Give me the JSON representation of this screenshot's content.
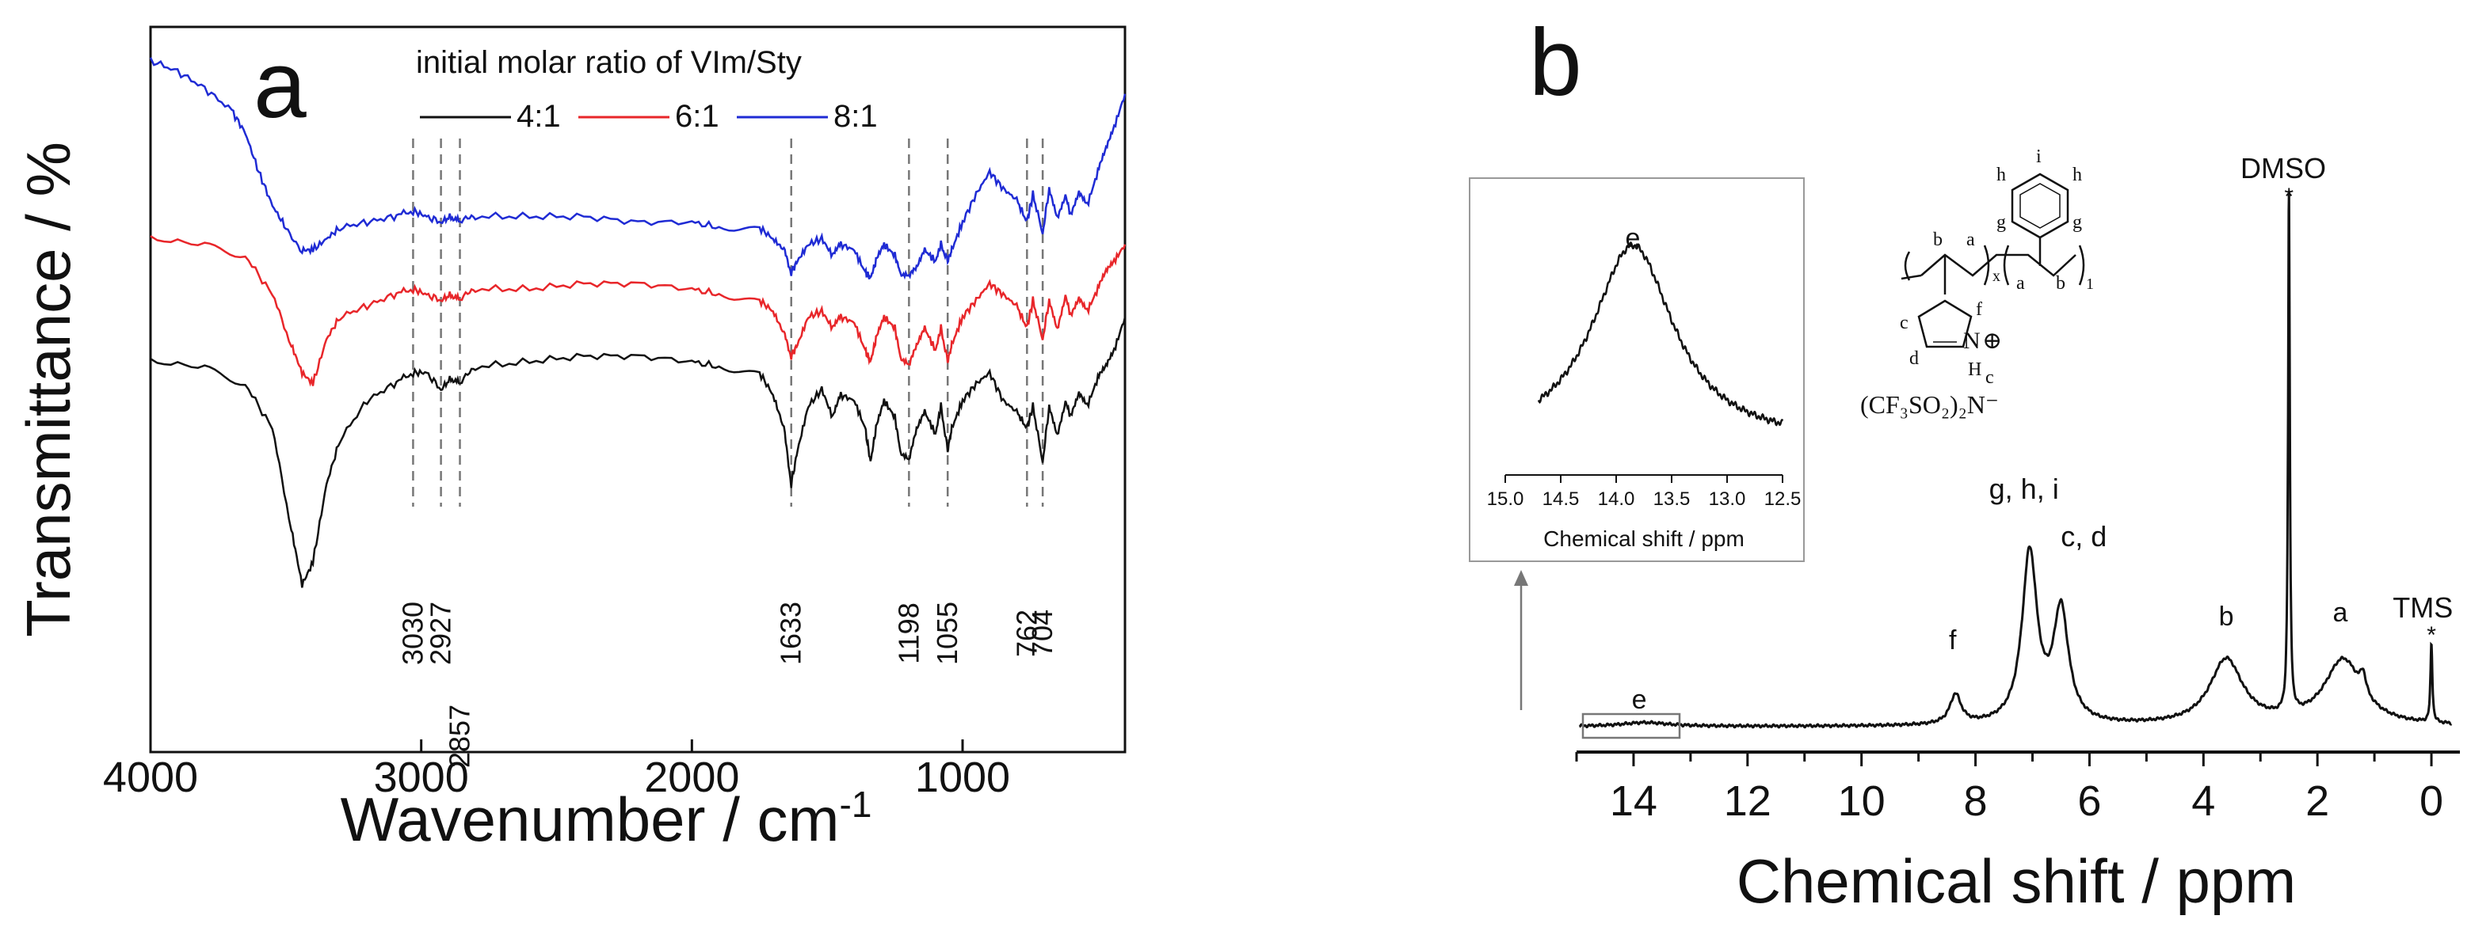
{
  "colors": {
    "black": "#111111",
    "red": "#e8262a",
    "blue": "#1f2bd4",
    "grey": "#777777"
  },
  "chart_data": [
    {
      "type": "line",
      "panel_label": "a",
      "xlabel": "Wavenumber / cm",
      "xlabel_sup": "-1",
      "ylabel": "Transmittance / %",
      "xlim": [
        4000,
        400
      ],
      "x_ticks": [
        4000,
        3000,
        2000,
        1000
      ],
      "legend_title": "initial molar ratio of VIm/Sty",
      "series": [
        {
          "name": "4:1",
          "color": "#111111",
          "points": [
            [
              4000,
              70
            ],
            [
              3800,
              69
            ],
            [
              3650,
              66
            ],
            [
              3550,
              58
            ],
            [
              3480,
              40
            ],
            [
              3440,
              30
            ],
            [
              3400,
              34
            ],
            [
              3350,
              48
            ],
            [
              3300,
              56
            ],
            [
              3200,
              63
            ],
            [
              3100,
              66
            ],
            [
              3030,
              68
            ],
            [
              2980,
              68
            ],
            [
              2927,
              65
            ],
            [
              2890,
              67
            ],
            [
              2857,
              66
            ],
            [
              2800,
              69
            ],
            [
              2600,
              70
            ],
            [
              2400,
              71
            ],
            [
              2200,
              71
            ],
            [
              2000,
              70
            ],
            [
              1900,
              69
            ],
            [
              1750,
              68
            ],
            [
              1700,
              64
            ],
            [
              1660,
              58
            ],
            [
              1633,
              48
            ],
            [
              1610,
              54
            ],
            [
              1570,
              62
            ],
            [
              1520,
              65
            ],
            [
              1480,
              60
            ],
            [
              1450,
              64
            ],
            [
              1400,
              63
            ],
            [
              1360,
              58
            ],
            [
              1340,
              52
            ],
            [
              1320,
              58
            ],
            [
              1290,
              63
            ],
            [
              1250,
              60
            ],
            [
              1230,
              54
            ],
            [
              1198,
              52
            ],
            [
              1170,
              58
            ],
            [
              1140,
              61
            ],
            [
              1100,
              57
            ],
            [
              1080,
              62
            ],
            [
              1055,
              54
            ],
            [
              1040,
              58
            ],
            [
              1000,
              63
            ],
            [
              950,
              66
            ],
            [
              900,
              68
            ],
            [
              850,
              63
            ],
            [
              800,
              61
            ],
            [
              762,
              58
            ],
            [
              740,
              62
            ],
            [
              704,
              52
            ],
            [
              680,
              62
            ],
            [
              650,
              57
            ],
            [
              620,
              63
            ],
            [
              600,
              60
            ],
            [
              570,
              64
            ],
            [
              540,
              62
            ],
            [
              500,
              67
            ],
            [
              470,
              69
            ],
            [
              440,
              72
            ],
            [
              400,
              78
            ]
          ]
        },
        {
          "name": "6:1",
          "color": "#e8262a",
          "points": [
            [
              4000,
              92
            ],
            [
              3800,
              91
            ],
            [
              3650,
              89
            ],
            [
              3550,
              82
            ],
            [
              3480,
              73
            ],
            [
              3440,
              68
            ],
            [
              3400,
              66
            ],
            [
              3350,
              74
            ],
            [
              3300,
              78
            ],
            [
              3200,
              80
            ],
            [
              3100,
              82
            ],
            [
              3030,
              83
            ],
            [
              2980,
              82
            ],
            [
              2927,
              81
            ],
            [
              2890,
              82
            ],
            [
              2857,
              81
            ],
            [
              2800,
              83
            ],
            [
              2600,
              83
            ],
            [
              2400,
              84
            ],
            [
              2200,
              84
            ],
            [
              2000,
              83
            ],
            [
              1900,
              82
            ],
            [
              1750,
              81
            ],
            [
              1700,
              79
            ],
            [
              1660,
              75
            ],
            [
              1633,
              71
            ],
            [
              1610,
              73
            ],
            [
              1570,
              78
            ],
            [
              1520,
              79
            ],
            [
              1480,
              76
            ],
            [
              1450,
              78
            ],
            [
              1400,
              77
            ],
            [
              1360,
              72
            ],
            [
              1340,
              70
            ],
            [
              1320,
              74
            ],
            [
              1290,
              78
            ],
            [
              1250,
              76
            ],
            [
              1230,
              71
            ],
            [
              1198,
              69
            ],
            [
              1170,
              73
            ],
            [
              1140,
              76
            ],
            [
              1100,
              72
            ],
            [
              1080,
              76
            ],
            [
              1055,
              70
            ],
            [
              1040,
              73
            ],
            [
              1000,
              78
            ],
            [
              950,
              81
            ],
            [
              900,
              84
            ],
            [
              850,
              82
            ],
            [
              800,
              80
            ],
            [
              762,
              76
            ],
            [
              740,
              81
            ],
            [
              704,
              74
            ],
            [
              680,
              81
            ],
            [
              650,
              76
            ],
            [
              620,
              82
            ],
            [
              600,
              78
            ],
            [
              570,
              81
            ],
            [
              540,
              79
            ],
            [
              500,
              83
            ],
            [
              470,
              86
            ],
            [
              440,
              88
            ],
            [
              400,
              91
            ]
          ]
        },
        {
          "name": "8:1",
          "color": "#1f2bd4",
          "points": [
            [
              4000,
              124
            ],
            [
              3900,
              122
            ],
            [
              3800,
              119
            ],
            [
              3700,
              115
            ],
            [
              3650,
              111
            ],
            [
              3600,
              104
            ],
            [
              3550,
              98
            ],
            [
              3500,
              94
            ],
            [
              3440,
              90
            ],
            [
              3400,
              90
            ],
            [
              3350,
              92
            ],
            [
              3300,
              94
            ],
            [
              3200,
              95
            ],
            [
              3100,
              96
            ],
            [
              3030,
              97
            ],
            [
              2980,
              96
            ],
            [
              2927,
              95
            ],
            [
              2890,
              96
            ],
            [
              2857,
              95
            ],
            [
              2800,
              96
            ],
            [
              2600,
              96
            ],
            [
              2400,
              96
            ],
            [
              2200,
              95
            ],
            [
              2000,
              95
            ],
            [
              1900,
              94
            ],
            [
              1750,
              94
            ],
            [
              1700,
              92
            ],
            [
              1660,
              90
            ],
            [
              1633,
              86
            ],
            [
              1610,
              88
            ],
            [
              1570,
              91
            ],
            [
              1520,
              92
            ],
            [
              1480,
              89
            ],
            [
              1450,
              91
            ],
            [
              1400,
              90
            ],
            [
              1360,
              86
            ],
            [
              1340,
              85
            ],
            [
              1320,
              88
            ],
            [
              1290,
              91
            ],
            [
              1250,
              89
            ],
            [
              1230,
              86
            ],
            [
              1198,
              85
            ],
            [
              1170,
              87
            ],
            [
              1140,
              90
            ],
            [
              1100,
              88
            ],
            [
              1080,
              91
            ],
            [
              1055,
              88
            ],
            [
              1040,
              90
            ],
            [
              1000,
              95
            ],
            [
              950,
              100
            ],
            [
              900,
              104
            ],
            [
              850,
              101
            ],
            [
              800,
              99
            ],
            [
              762,
              95
            ],
            [
              740,
              100
            ],
            [
              704,
              93
            ],
            [
              680,
              101
            ],
            [
              650,
              96
            ],
            [
              620,
              100
            ],
            [
              600,
              96
            ],
            [
              570,
              100
            ],
            [
              540,
              98
            ],
            [
              500,
              104
            ],
            [
              470,
              108
            ],
            [
              440,
              112
            ],
            [
              400,
              118
            ]
          ]
        }
      ],
      "ref_lines": [
        3030,
        2927,
        2857,
        1633,
        1198,
        1055,
        762,
        704
      ],
      "ref_labels": [
        {
          "x": 3030,
          "text": "3030",
          "pos": "upper"
        },
        {
          "x": 2927,
          "text": "2927",
          "pos": "upper"
        },
        {
          "x": 2857,
          "text": "2857",
          "pos": "lower"
        },
        {
          "x": 1633,
          "text": "1633",
          "pos": "upper"
        },
        {
          "x": 1198,
          "text": "1198",
          "pos": "upper"
        },
        {
          "x": 1055,
          "text": "1055",
          "pos": "upper"
        },
        {
          "x": 762,
          "text": "762",
          "pos": "upper"
        },
        {
          "x": 704,
          "text": "704",
          "pos": "upper"
        }
      ]
    },
    {
      "type": "line",
      "panel_label": "b",
      "xlabel": "Chemical shift / ppm",
      "xlim": [
        15,
        -0.5
      ],
      "x_ticks": [
        14,
        12,
        10,
        8,
        6,
        4,
        2,
        0
      ],
      "peaks": [
        {
          "center": 13.8,
          "height": 0.6,
          "width": 0.5,
          "label": "e"
        },
        {
          "center": 8.35,
          "height": 4.5,
          "width": 0.12,
          "label": "f"
        },
        {
          "center": 7.05,
          "height": 26,
          "width": 0.16,
          "label": "g, h, i"
        },
        {
          "center": 6.5,
          "height": 17,
          "width": 0.16,
          "label": "c, d"
        },
        {
          "center": 3.6,
          "height": 10,
          "width": 0.35,
          "label": "b"
        },
        {
          "center": 2.5,
          "height": 80,
          "width": 0.018,
          "label": "DMSO"
        },
        {
          "center": 1.55,
          "height": 10,
          "width": 0.4,
          "label": "a"
        },
        {
          "center": 1.2,
          "height": 3,
          "width": 0.06,
          "label": ""
        },
        {
          "center": 0.0,
          "height": 12,
          "width": 0.02,
          "label": "TMS"
        }
      ],
      "peak_labels": [
        "e",
        "f",
        "g, h, i",
        "c, d",
        "b",
        "DMSO",
        "a",
        "TMS"
      ],
      "inset": {
        "xlabel": "Chemical shift / ppm",
        "xlim": [
          15.0,
          12.5
        ],
        "x_ticks": [
          "15.0",
          "14.5",
          "14.0",
          "13.5",
          "13.0",
          "12.5"
        ],
        "peak_label": "e",
        "peak_center": 13.85
      },
      "structure_labels": {
        "b1": "b",
        "a1": "a",
        "g1": "g",
        "h1": "h",
        "i": "i",
        "h2": "h",
        "g2": "g",
        "a2": "a",
        "b2": "b",
        "sub_x": "x",
        "sub_1": "1",
        "f": "f",
        "c1": "c",
        "d": "d",
        "n_plus": "N",
        "plus": "⊕",
        "h_nh": "H",
        "c2": "c",
        "anion": "(CF₃SO₂)₂N⁻"
      }
    }
  ]
}
